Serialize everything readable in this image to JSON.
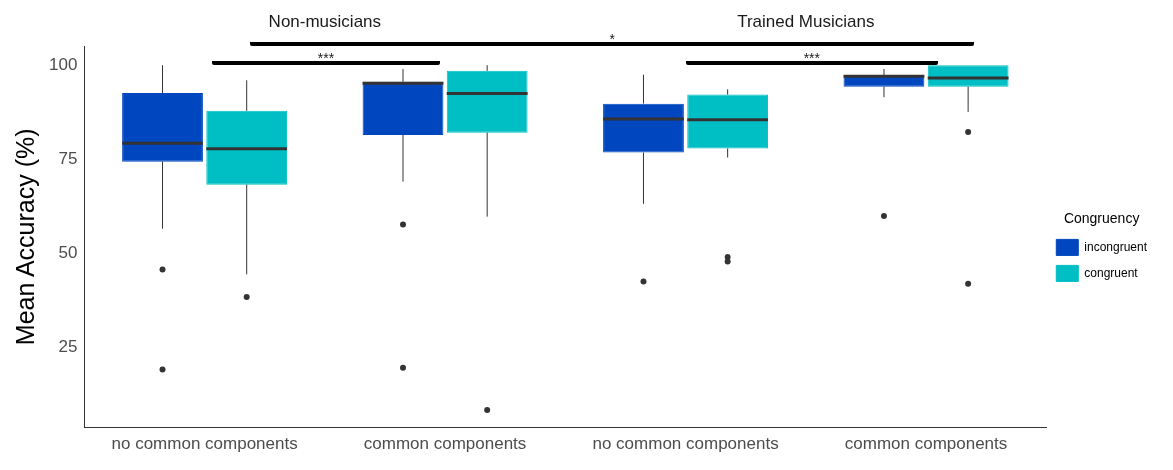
{
  "chart_data": {
    "type": "box",
    "categories": [
      "no common components",
      "common components",
      "no common components",
      "common components"
    ],
    "series": [
      {
        "name": "incongruent",
        "color": "#0047bf",
        "boxes": [
          {
            "low": 56.6,
            "q1": 74.4,
            "median": 79.3,
            "q3": 92.6,
            "high": 100,
            "outliers": [
              45.8,
              19.2
            ]
          },
          {
            "low": 69.1,
            "q1": 81.5,
            "median": 95.2,
            "q3": 95.6,
            "high": 99,
            "outliers": [
              57.7,
              19.7
            ]
          },
          {
            "low": 63.2,
            "q1": 76.8,
            "median": 85.7,
            "q3": 89.8,
            "high": 97.5,
            "outliers": [
              42.6
            ]
          },
          {
            "low": 91.5,
            "q1": 94.3,
            "median": 97.1,
            "q3": 97.3,
            "high": 99,
            "outliers": [
              60
            ]
          }
        ]
      },
      {
        "name": "congruent",
        "color": "#00bfc4",
        "boxes": [
          {
            "low": 44.5,
            "q1": 68.3,
            "median": 77.8,
            "q3": 87.9,
            "high": 96,
            "outliers": [
              38.5
            ]
          },
          {
            "low": 59.8,
            "q1": 82.1,
            "median": 92.5,
            "q3": 98.5,
            "high": 100,
            "outliers": [
              8.5
            ]
          },
          {
            "low": 75.5,
            "q1": 77.9,
            "median": 85.5,
            "q3": 92.2,
            "high": 93.6,
            "outliers": [
              49.1,
              47.9
            ]
          },
          {
            "low": 87.6,
            "q1": 94.3,
            "median": 96.6,
            "q3": 100,
            "high": 100,
            "outliers": [
              82.3,
              42
            ]
          }
        ]
      }
    ],
    "ylabel": "Mean Accuracy (%)",
    "legend_title": "Congruency",
    "legend": "right",
    "grid": false,
    "ylim": [
      3.8,
      105.1
    ],
    "yticks": [
      25,
      50,
      75,
      100
    ],
    "annotations": [
      "Non-musicians",
      "Trained Musicians",
      "*",
      "***",
      "***"
    ]
  }
}
